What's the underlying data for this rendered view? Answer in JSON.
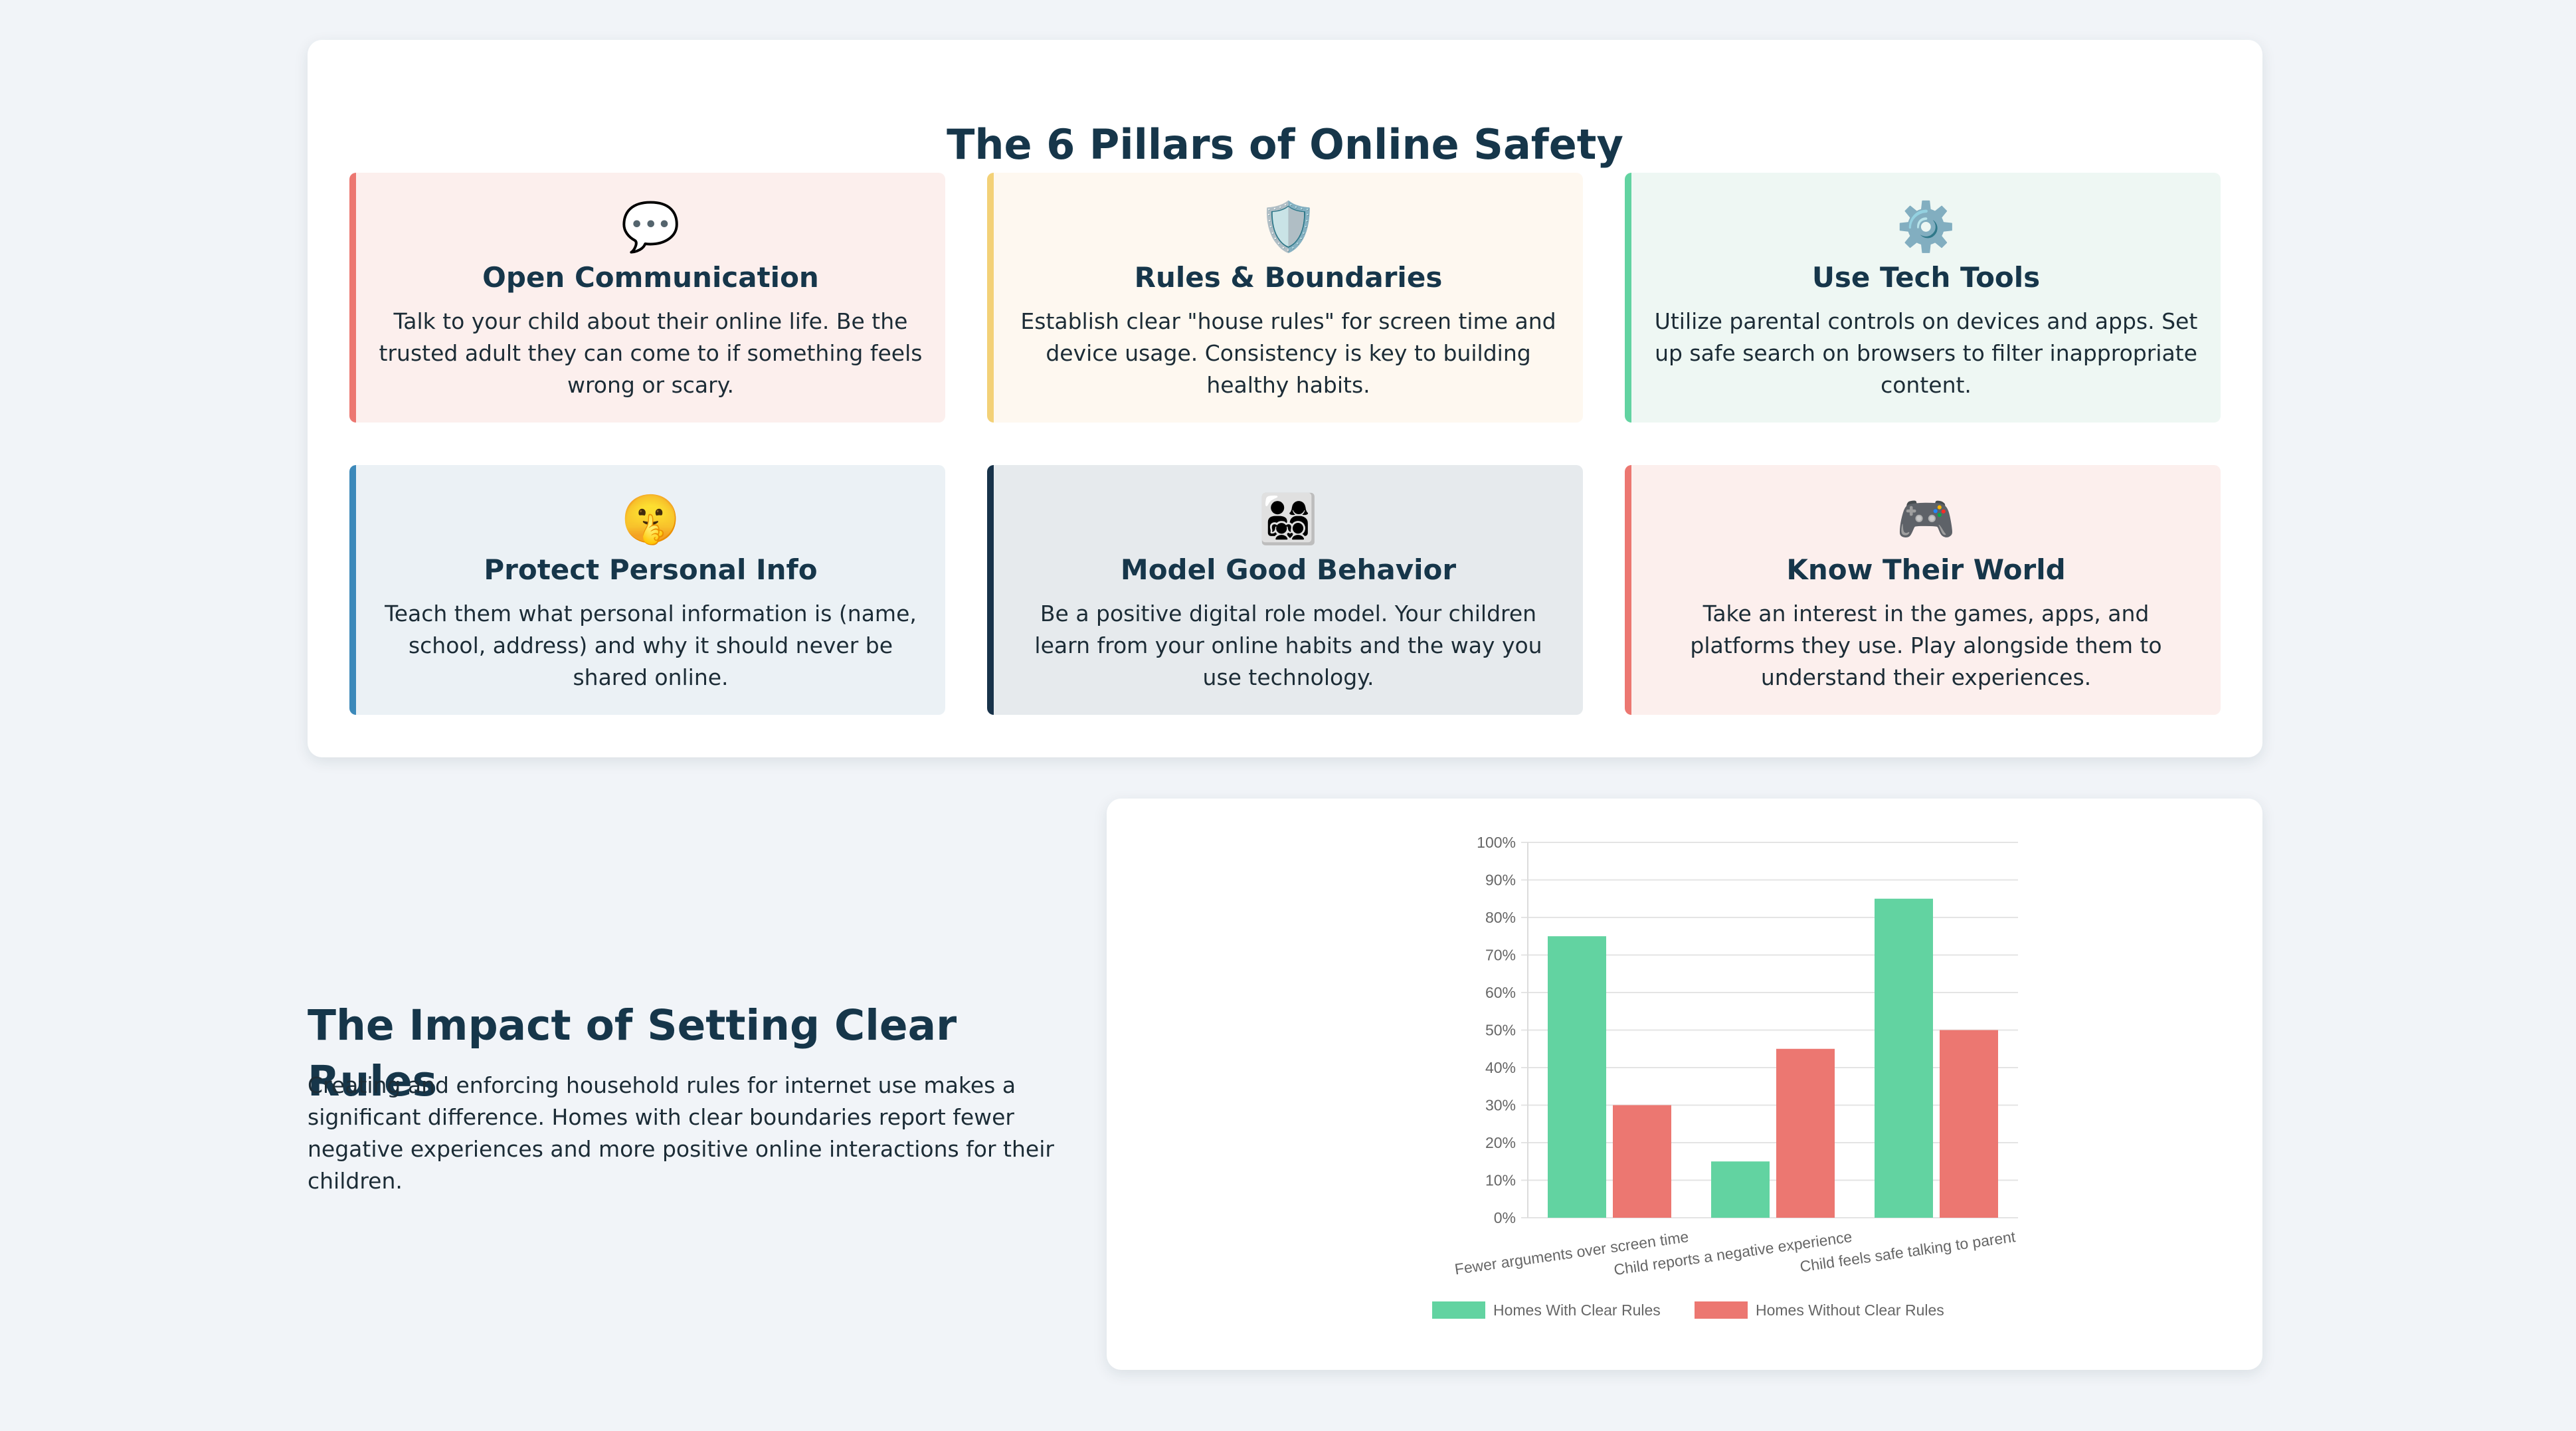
{
  "pillars": {
    "title": "The 6 Pillars of Online Safety",
    "cards": [
      {
        "icon": "💬",
        "icon_name": "speech-bubble-icon",
        "title": "Open Communication",
        "desc": "Talk to your child about their online life. Be the trusted adult they can come to if something feels wrong or scary.",
        "accent": "#ec7771"
      },
      {
        "icon": "🛡️",
        "icon_name": "shield-icon",
        "title": "Rules & Boundaries",
        "desc": "Establish clear \"house rules\" for screen time and device usage. Consistency is key to building healthy habits.",
        "accent": "#f3d177"
      },
      {
        "icon": "⚙️",
        "icon_name": "gear-icon",
        "title": "Use Tech Tools",
        "desc": "Utilize parental controls on devices and apps. Set up safe search on browsers to filter inappropriate content.",
        "accent": "#62d3a1"
      },
      {
        "icon": "🤫",
        "icon_name": "shushing-face-icon",
        "title": "Protect Personal Info",
        "desc": "Teach them what personal information is (name, school, address) and why it should never be shared online.",
        "accent": "#3c89ba"
      },
      {
        "icon": "👨‍👩‍👧‍👦",
        "icon_name": "family-icon",
        "title": "Model Good Behavior",
        "desc": "Be a positive digital role model. Your children learn from your online habits and the way you use technology.",
        "accent": "#18334a"
      },
      {
        "icon": "🎮",
        "icon_name": "game-controller-icon",
        "title": "Know Their World",
        "desc": "Take an interest in the games, apps, and platforms they use. Play alongside them to understand their experiences.",
        "accent": "#ec7771"
      }
    ]
  },
  "impact": {
    "title": "The Impact of Setting Clear Rules",
    "desc": "Creating and enforcing household rules for internet use makes a significant difference. Homes with clear boundaries report fewer negative experiences and more positive online interactions for their children."
  },
  "chart_data": {
    "type": "bar",
    "title": "",
    "xlabel": "",
    "ylabel": "",
    "categories": [
      "Fewer arguments over screen time",
      "Child reports a negative experience",
      "Child feels safe talking to parent"
    ],
    "series": [
      {
        "name": "Homes With Clear Rules",
        "values": [
          75,
          15,
          85
        ],
        "color": "#62d3a1"
      },
      {
        "name": "Homes Without Clear Rules",
        "values": [
          30,
          45,
          50
        ],
        "color": "#ec7771"
      }
    ],
    "ylim": [
      0,
      100
    ],
    "yticks": [
      "0%",
      "10%",
      "20%",
      "30%",
      "40%",
      "50%",
      "60%",
      "70%",
      "80%",
      "90%",
      "100%"
    ],
    "grid": true,
    "legend": "bottom"
  }
}
